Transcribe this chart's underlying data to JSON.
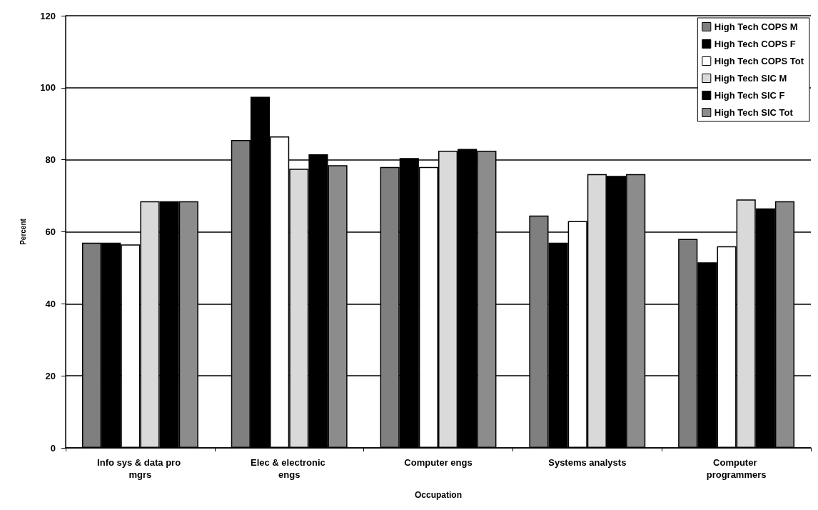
{
  "chart_data": {
    "type": "bar",
    "xlabel": "Occupation",
    "ylabel": "Percent",
    "categories": [
      "Info sys & data pro mgrs",
      "Elec & electronic engs",
      "Computer engs",
      "Systems analysts",
      "Computer programmers"
    ],
    "series": [
      {
        "name": "High Tech COPS M",
        "color": "#7f7f7f",
        "values": [
          57,
          85.5,
          78,
          64.5,
          58
        ]
      },
      {
        "name": "High Tech COPS F",
        "color": "#000000",
        "values": [
          57,
          97.5,
          80.5,
          57,
          51.5
        ]
      },
      {
        "name": "High Tech COPS Tot",
        "color": "#ffffff",
        "values": [
          56.5,
          86.5,
          78,
          63,
          56
        ]
      },
      {
        "name": "High Tech SIC M",
        "color": "#d9d9d9",
        "values": [
          68.5,
          77.5,
          82.5,
          76,
          69
        ]
      },
      {
        "name": "High Tech SIC F",
        "color": "#000000",
        "values": [
          68.5,
          81.5,
          83,
          75.5,
          66.5
        ]
      },
      {
        "name": "High Tech SIC Tot",
        "color": "#8c8c8c",
        "values": [
          68.5,
          78.5,
          82.5,
          76,
          68.5
        ]
      }
    ],
    "ylim": [
      0,
      120
    ],
    "yticks": [
      0,
      20,
      40,
      60,
      80,
      100,
      120
    ],
    "grid": "y",
    "legend": "top right"
  }
}
